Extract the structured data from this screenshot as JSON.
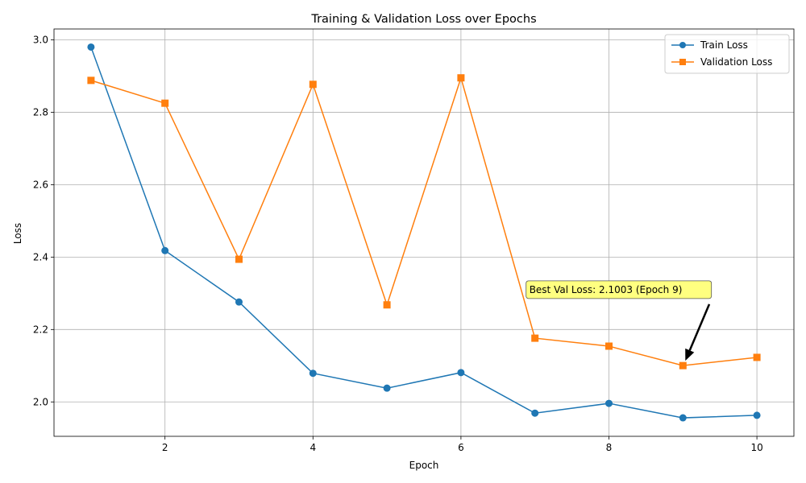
{
  "chart_data": {
    "type": "line",
    "title": "Training & Validation Loss over Epochs",
    "xlabel": "Epoch",
    "ylabel": "Loss",
    "x": [
      1,
      2,
      3,
      4,
      5,
      6,
      7,
      8,
      9,
      10
    ],
    "xlim": [
      0.5,
      10.5
    ],
    "ylim": [
      1.905,
      3.03
    ],
    "xticks": [
      2,
      4,
      6,
      8,
      10
    ],
    "yticks": [
      2.0,
      2.2,
      2.4,
      2.6,
      2.8,
      3.0
    ],
    "ytick_labels": [
      "2.0",
      "2.2",
      "2.4",
      "2.6",
      "2.8",
      "3.0"
    ],
    "grid": true,
    "legend_position": "upper right",
    "series": [
      {
        "name": "Train Loss",
        "color": "#1f77b4",
        "marker": "circle",
        "values": [
          2.98,
          2.418,
          2.276,
          2.079,
          2.038,
          2.081,
          1.969,
          1.996,
          1.956,
          1.963
        ]
      },
      {
        "name": "Validation Loss",
        "color": "#ff7f0e",
        "marker": "square",
        "values": [
          2.888,
          2.825,
          2.394,
          2.877,
          2.268,
          2.895,
          2.176,
          2.154,
          2.1003,
          2.123
        ]
      }
    ],
    "annotation": {
      "text": "Best Val Loss: 2.1003 (Epoch 9)",
      "x": 9,
      "y": 2.1003,
      "text_x": 7,
      "text_y": 2.31,
      "box_color": "#ffff80"
    }
  }
}
